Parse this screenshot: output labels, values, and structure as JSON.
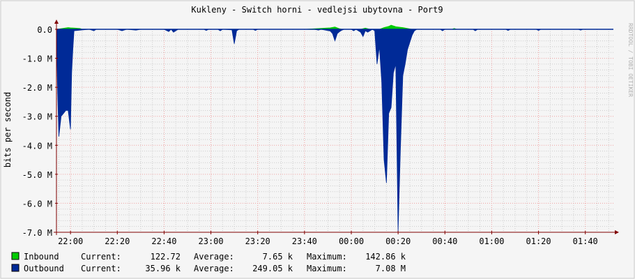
{
  "chart_data": {
    "type": "area",
    "title": "Kukleny - Switch horni - vedlejsi ubytovna - Port9",
    "ylabel": "bits per second",
    "watermark": "RRDTOOL / TOBI OETIKER",
    "y_ticks": [
      "0.0",
      "-1.0 M",
      "-2.0 M",
      "-3.0 M",
      "-4.0 M",
      "-5.0 M",
      "-6.0 M",
      "-7.0 M"
    ],
    "ylim": [
      -7000000,
      0
    ],
    "x_ticks": [
      "22:00",
      "22:20",
      "22:40",
      "23:00",
      "23:20",
      "23:40",
      "00:00",
      "00:20",
      "00:40",
      "01:00",
      "01:20",
      "01:40"
    ],
    "x_range_minutes": [
      -6,
      232
    ],
    "grid": true,
    "colors": {
      "inbound": "#00cc00",
      "outbound": "#002a97",
      "grid_minor": "#cccccc",
      "grid_major": "#f0a0a0",
      "axis": "#800000",
      "frame": "#000000",
      "text": "#000000",
      "watermark": "#b0b0b0"
    },
    "series": [
      {
        "name": "Inbound",
        "points": [
          [
            -6,
            0
          ],
          [
            -1,
            60000
          ],
          [
            0,
            50000
          ],
          [
            2,
            40000
          ],
          [
            4,
            30000
          ],
          [
            5,
            0
          ],
          [
            100,
            0
          ],
          [
            111,
            50000
          ],
          [
            113,
            80000
          ],
          [
            115,
            20000
          ],
          [
            116,
            0
          ],
          [
            124,
            0
          ],
          [
            126,
            40000
          ],
          [
            128,
            0
          ],
          [
            132,
            0
          ],
          [
            134,
            60000
          ],
          [
            136,
            100000
          ],
          [
            137,
            142860
          ],
          [
            139,
            90000
          ],
          [
            141,
            70000
          ],
          [
            142,
            60000
          ],
          [
            144,
            30000
          ],
          [
            146,
            0
          ],
          [
            163,
            0
          ],
          [
            164,
            30000
          ],
          [
            165,
            0
          ],
          [
            232,
            0
          ]
        ]
      },
      {
        "name": "Outbound",
        "points": [
          [
            -6,
            -100000
          ],
          [
            -5.5,
            -2200000
          ],
          [
            -5,
            -3700000
          ],
          [
            -4,
            -3000000
          ],
          [
            -3,
            -2900000
          ],
          [
            -2,
            -2800000
          ],
          [
            -1,
            -2800000
          ],
          [
            0,
            -3450000
          ],
          [
            0.5,
            -1500000
          ],
          [
            1,
            -700000
          ],
          [
            1.5,
            -50000
          ],
          [
            8,
            0
          ],
          [
            10,
            -50000
          ],
          [
            11,
            0
          ],
          [
            20,
            0
          ],
          [
            22,
            -50000
          ],
          [
            24,
            0
          ],
          [
            28,
            -30000
          ],
          [
            30,
            0
          ],
          [
            40,
            0
          ],
          [
            42,
            -80000
          ],
          [
            43,
            0
          ],
          [
            44,
            -100000
          ],
          [
            45,
            -50000
          ],
          [
            46,
            0
          ],
          [
            57,
            0
          ],
          [
            58,
            -40000
          ],
          [
            59,
            0
          ],
          [
            63,
            0
          ],
          [
            64,
            -50000
          ],
          [
            65,
            0
          ],
          [
            69,
            -20000
          ],
          [
            70,
            -500000
          ],
          [
            71,
            -50000
          ],
          [
            72,
            0
          ],
          [
            78,
            0
          ],
          [
            79,
            -40000
          ],
          [
            80,
            0
          ],
          [
            104,
            0
          ],
          [
            106,
            -30000
          ],
          [
            107,
            0
          ],
          [
            111,
            -60000
          ],
          [
            112,
            -150000
          ],
          [
            113,
            -400000
          ],
          [
            114,
            -150000
          ],
          [
            115,
            -80000
          ],
          [
            116,
            -30000
          ],
          [
            117,
            0
          ],
          [
            120,
            0
          ],
          [
            121,
            -50000
          ],
          [
            122,
            0
          ],
          [
            124,
            -100000
          ],
          [
            125,
            -250000
          ],
          [
            126,
            -50000
          ],
          [
            127,
            -100000
          ],
          [
            128,
            -50000
          ],
          [
            129,
            0
          ],
          [
            130,
            -50000
          ],
          [
            131,
            -1200000
          ],
          [
            132,
            -600000
          ],
          [
            133,
            -1800000
          ],
          [
            134,
            -4500000
          ],
          [
            135,
            -5300000
          ],
          [
            136,
            -2900000
          ],
          [
            137,
            -2700000
          ],
          [
            138,
            -1500000
          ],
          [
            139,
            -1200000
          ],
          [
            140,
            -7080000
          ],
          [
            141,
            -4100000
          ],
          [
            142,
            -1600000
          ],
          [
            143,
            -1200000
          ],
          [
            144,
            -700000
          ],
          [
            145,
            -450000
          ],
          [
            146,
            -200000
          ],
          [
            147,
            -50000
          ],
          [
            148,
            0
          ],
          [
            158,
            0
          ],
          [
            159,
            -50000
          ],
          [
            160,
            0
          ],
          [
            172,
            0
          ],
          [
            173,
            -50000
          ],
          [
            174,
            0
          ],
          [
            186,
            0
          ],
          [
            187,
            -40000
          ],
          [
            188,
            0
          ],
          [
            199,
            0
          ],
          [
            200,
            -40000
          ],
          [
            201,
            0
          ],
          [
            217,
            0
          ],
          [
            218,
            -30000
          ],
          [
            219,
            0
          ],
          [
            232,
            0
          ]
        ]
      }
    ]
  },
  "legend": [
    {
      "name": "Inbound",
      "current_label": "Current:",
      "current": "122.72",
      "average_label": "Average:",
      "average": "7.65 k",
      "maximum_label": "Maximum:",
      "maximum": "142.86 k"
    },
    {
      "name": "Outbound",
      "current_label": "Current:",
      "current": "35.96 k",
      "average_label": "Average:",
      "average": "249.05 k",
      "maximum_label": "Maximum:",
      "maximum": "7.08 M"
    }
  ]
}
